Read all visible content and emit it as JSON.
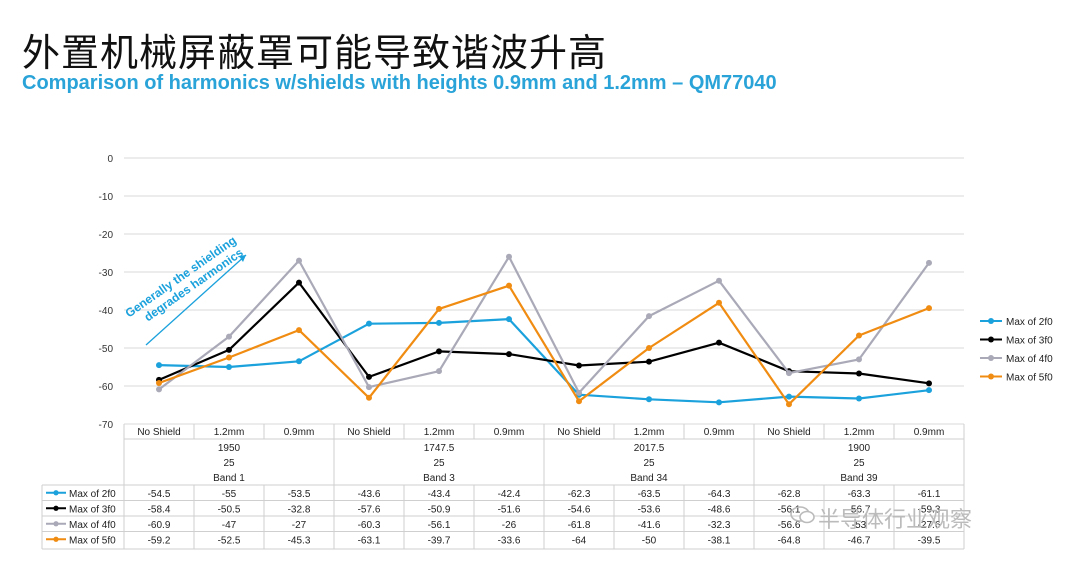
{
  "page": {
    "title_cn": "外置机械屏蔽罩可能导致谐波升高",
    "title_en": "Comparison of harmonics w/shields with heights 0.9mm and 1.2mm – QM77040",
    "annotation": "Generally the shielding degrades harmonics",
    "annotation_line1": "Generally the shielding",
    "annotation_line2": "degrades harmonics",
    "watermark": "半导体行业观察"
  },
  "chart_data": {
    "type": "line",
    "ylim": [
      -70,
      0
    ],
    "yticks": [
      0,
      -10,
      -20,
      -30,
      -40,
      -50,
      -60,
      -70
    ],
    "grid": true,
    "legend_position": "right",
    "categories": [
      "No Shield",
      "1.2mm",
      "0.9mm",
      "No Shield",
      "1.2mm",
      "0.9mm",
      "No Shield",
      "1.2mm",
      "0.9mm",
      "No Shield",
      "1.2mm",
      "0.9mm"
    ],
    "groups": [
      {
        "freq": "1950",
        "n": "25",
        "band": "Band 1"
      },
      {
        "freq": "1747.5",
        "n": "25",
        "band": "Band 3"
      },
      {
        "freq": "2017.5",
        "n": "25",
        "band": "Band 34"
      },
      {
        "freq": "1900",
        "n": "25",
        "band": "Band 39"
      }
    ],
    "series": [
      {
        "name": "Max of 2f0",
        "color": "#1ba1dc",
        "values": [
          -54.5,
          -55,
          -53.5,
          -43.6,
          -43.4,
          -42.4,
          -62.3,
          -63.5,
          -64.3,
          -62.8,
          -63.3,
          -61.1
        ]
      },
      {
        "name": "Max of 3f0",
        "color": "#000000",
        "values": [
          -58.4,
          -50.5,
          -32.8,
          -57.6,
          -50.9,
          -51.6,
          -54.6,
          -53.6,
          -48.6,
          -56.1,
          -56.7,
          -59.3
        ]
      },
      {
        "name": "Max of 4f0",
        "color": "#a9a9b8",
        "values": [
          -60.9,
          -47,
          -27,
          -60.3,
          -56.1,
          -26,
          -61.8,
          -41.6,
          -32.3,
          -56.6,
          -53,
          -27.6
        ]
      },
      {
        "name": "Max of 5f0",
        "color": "#f08c12",
        "values": [
          -59.2,
          -52.5,
          -45.3,
          -63.1,
          -39.7,
          -33.6,
          -64,
          -50,
          -38.1,
          -64.8,
          -46.7,
          -39.5
        ]
      }
    ]
  }
}
